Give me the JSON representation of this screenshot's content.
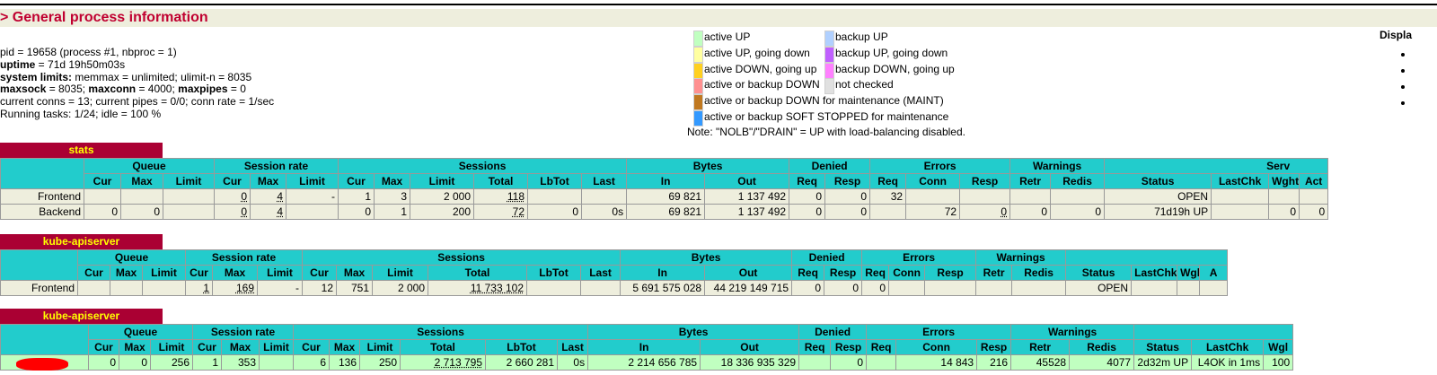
{
  "header": {
    "title": "> General process information"
  },
  "info": {
    "pid_line": "pid = 19658 (process #1, nbproc = 1)",
    "uptime_key": "uptime",
    "uptime_val": " = 71d 19h50m03s",
    "limits_key": "system limits:",
    "limits_val": " memmax = unlimited; ulimit-n = 8035",
    "maxsock_key": "maxsock",
    "maxsock_val": " = 8035; ",
    "maxconn_key": "maxconn",
    "maxconn_val": " = 4000; ",
    "maxpipes_key": "maxpipes",
    "maxpipes_val": " = 0",
    "conns_line": "current conns = 13; current pipes = 0/0; conn rate = 1/sec",
    "tasks_line": "Running tasks: 1/24; idle = 100 %"
  },
  "legend": {
    "left": [
      {
        "label": "active UP",
        "color": "#c0ffc0"
      },
      {
        "label": "active UP, going down",
        "color": "#ffffa0"
      },
      {
        "label": "active DOWN, going up",
        "color": "#ffd020"
      },
      {
        "label": "active or backup DOWN",
        "color": "#ff9090"
      },
      {
        "label": "active or backup DOWN for maintenance (MAINT)",
        "color": "#c07820"
      },
      {
        "label": "active or backup SOFT STOPPED for maintenance",
        "color": "#3399ff"
      }
    ],
    "right": [
      {
        "label": "backup UP",
        "color": "#b0d0ff"
      },
      {
        "label": "backup UP, going down",
        "color": "#c060ff"
      },
      {
        "label": "backup DOWN, going up",
        "color": "#ff80ff"
      },
      {
        "label": "not checked",
        "color": "#e0e0e0"
      }
    ],
    "note": "Note: \"NOLB\"/\"DRAIN\" = UP with load-balancing disabled."
  },
  "display_label": "Displa",
  "stats": {
    "name": "stats",
    "groups": [
      "Queue",
      "Session rate",
      "Sessions",
      "Bytes",
      "Denied",
      "Errors",
      "Warnings",
      "Serv"
    ],
    "cols": [
      "Cur",
      "Max",
      "Limit",
      "Cur",
      "Max",
      "Limit",
      "Cur",
      "Max",
      "Limit",
      "Total",
      "LbTot",
      "Last",
      "In",
      "Out",
      "Req",
      "Resp",
      "Req",
      "Conn",
      "Resp",
      "Retr",
      "Redis",
      "Status",
      "LastChk",
      "Wght",
      "Act"
    ],
    "frontend": [
      "Frontend",
      "",
      "",
      "",
      "0",
      "4",
      "-",
      "1",
      "3",
      "2 000",
      "118",
      "",
      "",
      "69 821",
      "1 137 492",
      "0",
      "0",
      "32",
      "",
      "",
      "",
      "",
      "OPEN",
      "",
      "",
      ""
    ],
    "backend": [
      "Backend",
      "0",
      "0",
      "",
      "0",
      "4",
      "",
      "0",
      "1",
      "200",
      "72",
      "0",
      "0s",
      "69 821",
      "1 137 492",
      "0",
      "0",
      "",
      "72",
      "0",
      "0",
      "0",
      "71d19h UP",
      "",
      "0",
      "0"
    ]
  },
  "kube_fe": {
    "name": "kube-apiserver",
    "groups": [
      "Queue",
      "Session rate",
      "Sessions",
      "Bytes",
      "Denied",
      "Errors",
      "Warnings"
    ],
    "cols": [
      "Cur",
      "Max",
      "Limit",
      "Cur",
      "Max",
      "Limit",
      "Cur",
      "Max",
      "Limit",
      "Total",
      "LbTot",
      "Last",
      "In",
      "Out",
      "Req",
      "Resp",
      "Req",
      "Conn",
      "Resp",
      "Retr",
      "Redis",
      "Status",
      "LastChk",
      "Wght",
      "A"
    ],
    "frontend": [
      "Frontend",
      "",
      "",
      "",
      "1",
      "169",
      "-",
      "12",
      "751",
      "2 000",
      "11 733 102",
      "",
      "",
      "5 691 575 028",
      "44 219 149 715",
      "0",
      "0",
      "0",
      "",
      "",
      "",
      "",
      "OPEN",
      "",
      "",
      ""
    ]
  },
  "kube_be": {
    "name": "kube-apiserver",
    "groups": [
      "Queue",
      "Session rate",
      "Sessions",
      "Bytes",
      "Denied",
      "Errors",
      "Warnings"
    ],
    "cols": [
      "Cur",
      "Max",
      "Limit",
      "Cur",
      "Max",
      "Limit",
      "Cur",
      "Max",
      "Limit",
      "Total",
      "LbTot",
      "Last",
      "In",
      "Out",
      "Req",
      "Resp",
      "Req",
      "Conn",
      "Resp",
      "Retr",
      "Redis",
      "Status",
      "LastChk",
      "Wgl"
    ],
    "server": [
      "",
      "0",
      "0",
      "256",
      "1",
      "353",
      "",
      "6",
      "136",
      "250",
      "2 713 795",
      "2 660 281",
      "0s",
      "2 214 656 785",
      "18 336 935 329",
      "",
      "0",
      "",
      "14 843",
      "216",
      "45528",
      "4077",
      "2d32m UP",
      "L4OK in 1ms",
      "100"
    ]
  }
}
